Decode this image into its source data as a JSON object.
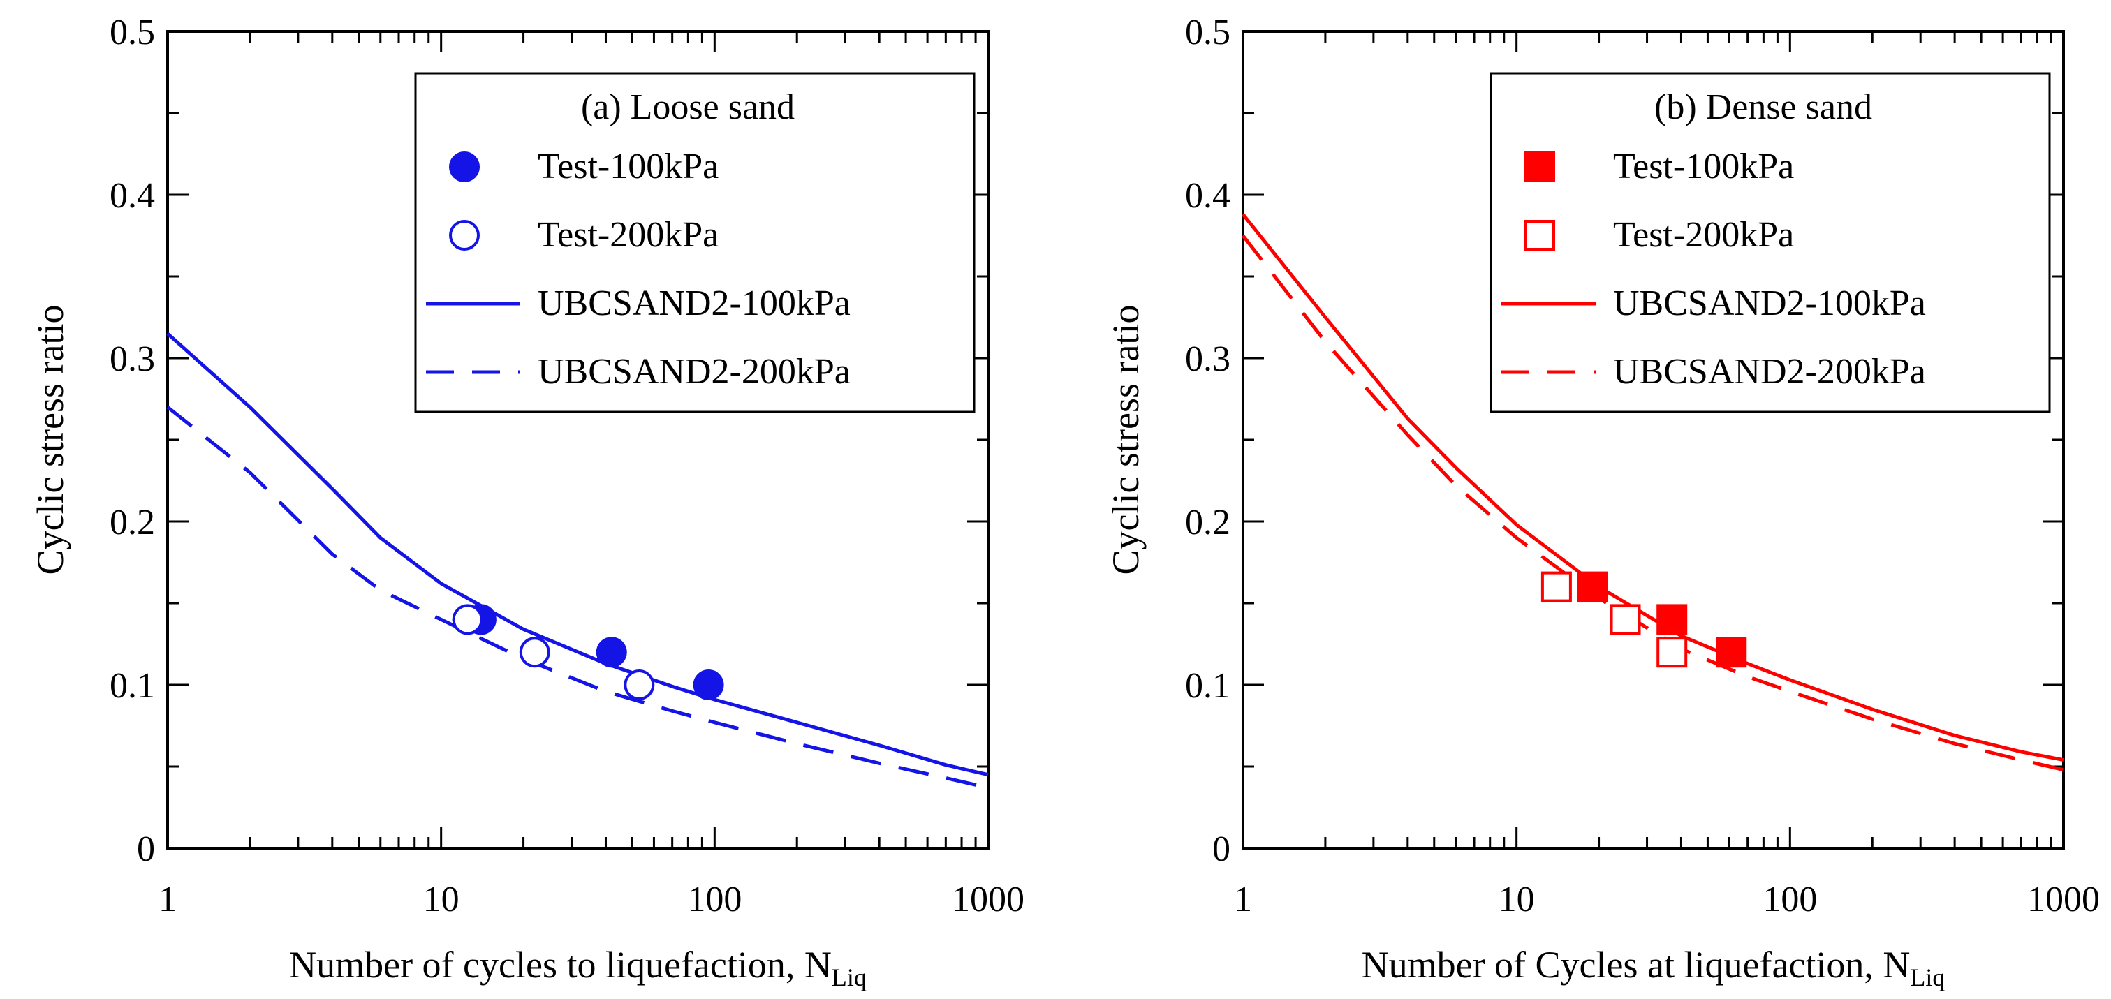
{
  "chart_data": [
    {
      "type": "scatter",
      "panel": "a",
      "title": "(a) Loose sand",
      "xlabel": "Number of cycles to liquefaction, N",
      "xlabel_sub": "Liq",
      "ylabel": "Cyclic stress ratio",
      "xscale": "log",
      "xlim": [
        1,
        1000
      ],
      "ylim": [
        0,
        0.5
      ],
      "xticks": [
        1,
        10,
        100,
        1000
      ],
      "xtick_labels": [
        "1",
        "10",
        "100",
        "1000"
      ],
      "yticks": [
        0,
        0.1,
        0.2,
        0.3,
        0.4,
        0.5
      ],
      "ytick_labels": [
        "0",
        "0.1",
        "0.2",
        "0.3",
        "0.4",
        "0.5"
      ],
      "color": "#1414e6",
      "legend_position": "top-right",
      "series": [
        {
          "name": "Test-100kPa",
          "kind": "points",
          "marker": "circle",
          "filled": true,
          "x": [
            14,
            42,
            95
          ],
          "y": [
            0.14,
            0.12,
            0.1
          ]
        },
        {
          "name": "Test-200kPa",
          "kind": "points",
          "marker": "circle",
          "filled": false,
          "x": [
            12.5,
            22,
            53
          ],
          "y": [
            0.14,
            0.12,
            0.1
          ]
        },
        {
          "name": "UBCSAND2-100kPa",
          "kind": "line",
          "dash": false,
          "x": [
            1,
            2,
            4,
            6,
            10,
            20,
            40,
            70,
            100,
            200,
            400,
            700,
            1000
          ],
          "y": [
            0.315,
            0.27,
            0.22,
            0.19,
            0.162,
            0.134,
            0.113,
            0.099,
            0.091,
            0.077,
            0.063,
            0.051,
            0.045
          ]
        },
        {
          "name": "UBCSAND2-200kPa",
          "kind": "line",
          "dash": true,
          "x": [
            1,
            2,
            4,
            6,
            10,
            20,
            40,
            70,
            100,
            200,
            400,
            700,
            1000
          ],
          "y": [
            0.27,
            0.23,
            0.18,
            0.158,
            0.14,
            0.116,
            0.096,
            0.084,
            0.077,
            0.064,
            0.052,
            0.043,
            0.037
          ]
        }
      ]
    },
    {
      "type": "scatter",
      "panel": "b",
      "title": "(b) Dense sand",
      "xlabel": "Number of Cycles at liquefaction, N",
      "xlabel_sub": "Liq",
      "ylabel": "Cyclic stress ratio",
      "xscale": "log",
      "xlim": [
        1,
        1000
      ],
      "ylim": [
        0,
        0.5
      ],
      "xticks": [
        1,
        10,
        100,
        1000
      ],
      "xtick_labels": [
        "1",
        "10",
        "100",
        "1000"
      ],
      "yticks": [
        0,
        0.1,
        0.2,
        0.3,
        0.4,
        0.5
      ],
      "ytick_labels": [
        "0",
        "0.1",
        "0.2",
        "0.3",
        "0.4",
        "0.5"
      ],
      "color": "#ff0000",
      "legend_position": "top-right",
      "series": [
        {
          "name": "Test-100kPa",
          "kind": "points",
          "marker": "square",
          "filled": true,
          "x": [
            19,
            37,
            61
          ],
          "y": [
            0.16,
            0.14,
            0.12
          ]
        },
        {
          "name": "Test-200kPa",
          "kind": "points",
          "marker": "square",
          "filled": false,
          "x": [
            14,
            25,
            37
          ],
          "y": [
            0.16,
            0.14,
            0.12
          ]
        },
        {
          "name": "UBCSAND2-100kPa",
          "kind": "line",
          "dash": false,
          "x": [
            1,
            2,
            4,
            6,
            10,
            20,
            40,
            70,
            100,
            200,
            400,
            700,
            1000
          ],
          "y": [
            0.388,
            0.325,
            0.263,
            0.233,
            0.198,
            0.16,
            0.13,
            0.113,
            0.103,
            0.085,
            0.069,
            0.059,
            0.054
          ]
        },
        {
          "name": "UBCSAND2-200kPa",
          "kind": "line",
          "dash": true,
          "x": [
            1,
            2,
            4,
            6,
            10,
            20,
            40,
            70,
            100,
            200,
            400,
            700,
            1000
          ],
          "y": [
            0.375,
            0.31,
            0.253,
            0.222,
            0.19,
            0.153,
            0.122,
            0.105,
            0.096,
            0.079,
            0.064,
            0.054,
            0.048
          ]
        }
      ]
    }
  ]
}
